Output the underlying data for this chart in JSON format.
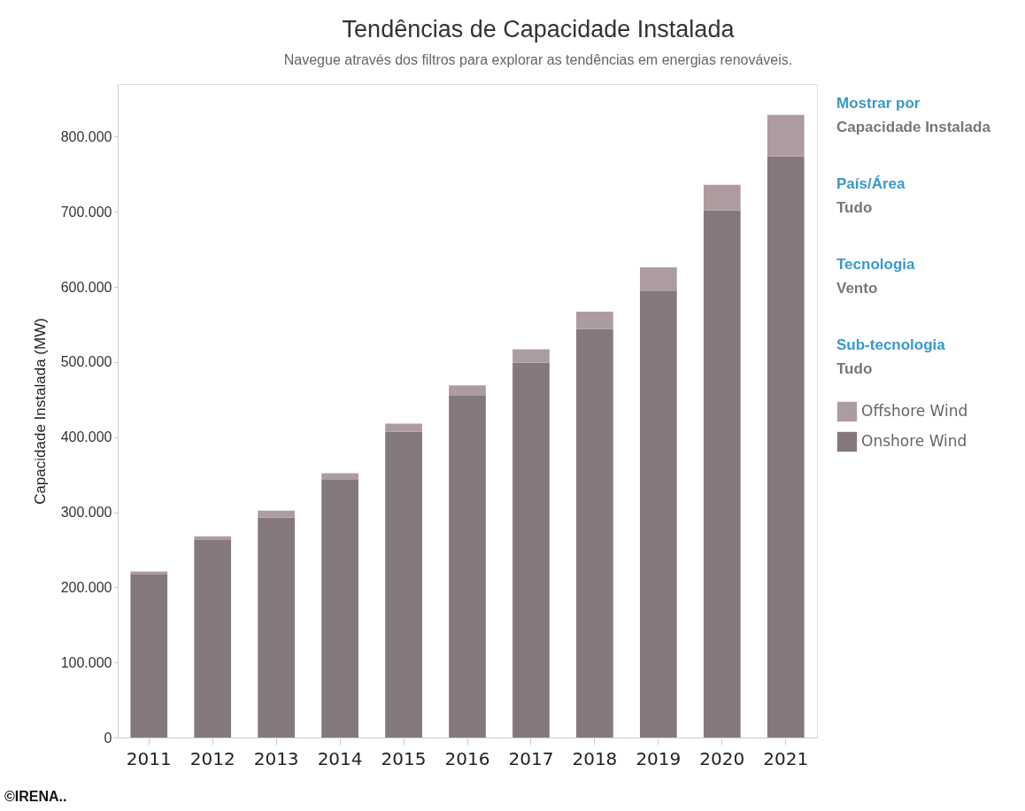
{
  "chart_data": {
    "type": "bar",
    "title": "Tendências de Capacidade Instalada",
    "subtitle": "Navegue através dos filtros para explorar as tendências em energias renováveis.",
    "ylabel": "Capacidade Instalada (MW)",
    "categories": [
      "2011",
      "2012",
      "2013",
      "2014",
      "2015",
      "2016",
      "2017",
      "2018",
      "2019",
      "2020",
      "2021"
    ],
    "stacked": true,
    "series": [
      {
        "name": "Onshore Wind",
        "color": "#85787c",
        "values": [
          217000,
          263000,
          293000,
          343000,
          407000,
          455000,
          499000,
          544000,
          595000,
          702000,
          774000
        ]
      },
      {
        "name": "Offshore Wind",
        "color": "#ad9c9f",
        "values": [
          4000,
          5000,
          9000,
          9000,
          11000,
          14000,
          18000,
          23000,
          31000,
          34000,
          55000
        ]
      }
    ],
    "ylim": [
      0,
      870000
    ],
    "yticks": [
      0,
      {
        "value": 100000,
        "label": "100.000"
      },
      {
        "value": 200000,
        "label": "200.000"
      },
      {
        "value": 300000,
        "label": "300.000"
      },
      {
        "value": 400000,
        "label": "400.000"
      },
      {
        "value": 500000,
        "label": "500.000"
      },
      {
        "value": 600000,
        "label": "600.000"
      },
      {
        "value": 700000,
        "label": "700.000"
      },
      {
        "value": 800000,
        "label": "800.000"
      }
    ],
    "grid": false,
    "legend": "right",
    "annotations": [
      "Mostrar por",
      "Capacidade Instalada",
      "País/Área",
      "Tudo",
      "Tecnologia",
      "Vento",
      "Sub-tecnologia",
      "Tudo",
      "©IRENA.."
    ]
  }
}
